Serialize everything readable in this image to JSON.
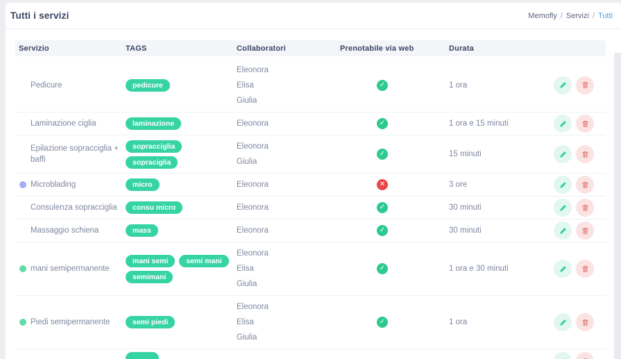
{
  "page": {
    "title": "Tutti i servizi",
    "breadcrumb": {
      "crumbs": [
        "Memofly",
        "Servizi"
      ],
      "current": "Tutti",
      "separator": "/"
    }
  },
  "table": {
    "headers": {
      "service": "Servizio",
      "tags": "TAGS",
      "collaborators": "Collaboratori",
      "bookable": "Prenotabile via web",
      "duration": "Durata"
    },
    "rows": [
      {
        "service": "Pedicure",
        "dot_color": "",
        "tags": [
          "pedicure"
        ],
        "collaborators": [
          "Eleonora",
          "Elisa",
          "Giulia"
        ],
        "bookable_web": true,
        "duration": "1 ora"
      },
      {
        "service": "Laminazione ciglia",
        "dot_color": "",
        "tags": [
          "laminazione"
        ],
        "collaborators": [
          "Eleonora"
        ],
        "bookable_web": true,
        "duration": "1 ora e 15 minuti"
      },
      {
        "service": "Epilazione sopracciglia + baffi",
        "dot_color": "",
        "tags": [
          "sopracciglia",
          "sopraciglia"
        ],
        "collaborators": [
          "Eleonora",
          "Giulia"
        ],
        "bookable_web": true,
        "duration": "15 minuti"
      },
      {
        "service": "Microblading",
        "dot_color": "#a6acf4",
        "tags": [
          "micro"
        ],
        "collaborators": [
          "Eleonora"
        ],
        "bookable_web": false,
        "duration": "3 ore"
      },
      {
        "service": "Consulenza sopracciglia",
        "dot_color": "",
        "tags": [
          "consu micro"
        ],
        "collaborators": [
          "Eleonora"
        ],
        "bookable_web": true,
        "duration": "30 minuti"
      },
      {
        "service": "Massaggio schiena",
        "dot_color": "",
        "tags": [
          "mass"
        ],
        "collaborators": [
          "Eleonora"
        ],
        "bookable_web": true,
        "duration": "30 minuti"
      },
      {
        "service": "mani semipermanente",
        "dot_color": "#62dbaa",
        "tags": [
          "mani semi",
          "semi mani",
          "semimani"
        ],
        "collaborators": [
          "Eleonora",
          "Elisa",
          "Giulia"
        ],
        "bookable_web": true,
        "duration": "1 ora e 30 minuti"
      },
      {
        "service": "Piedi semipermanente",
        "dot_color": "#62dbaa",
        "tags": [
          "semi piedi"
        ],
        "collaborators": [
          "Eleonora",
          "Elisa",
          "Giulia"
        ],
        "bookable_web": true,
        "duration": "1 ora"
      }
    ],
    "partial_row_visible": true
  },
  "icons": {
    "bookable_yes": "✓",
    "bookable_no": "✕",
    "edit": "pencil-icon",
    "delete": "trash-icon"
  },
  "colors": {
    "tag_bg": "#37d4a3",
    "bookable_yes": "#2dc98f",
    "bookable_no": "#e94747",
    "edit_button_bg": "#e1f7ef",
    "edit_icon": "#30cf9f",
    "delete_button_bg": "#fbe3e3",
    "delete_icon": "#df7070",
    "breadcrumb_active": "#4aa0e8",
    "dot_purple": "#a6acf4",
    "dot_green": "#62dbaa"
  }
}
